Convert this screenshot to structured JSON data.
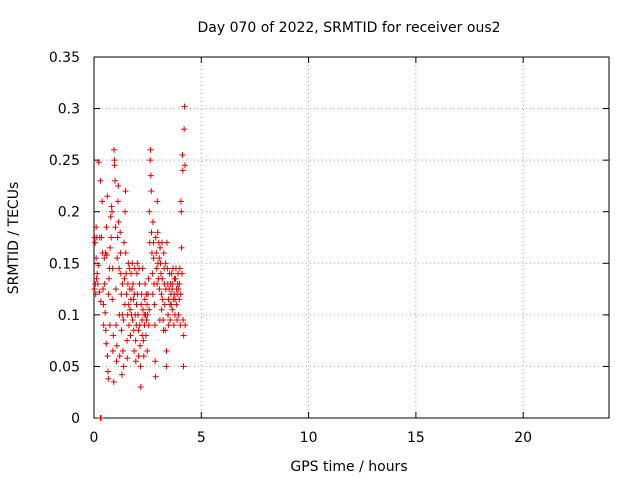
{
  "chart_data": {
    "type": "scatter",
    "title": "Day 070 of 2022, SRMTID for receiver ous2",
    "xlabel": "GPS time / hours",
    "ylabel": "SRMTID / TECUs",
    "xlim": [
      0,
      24
    ],
    "ylim": [
      0,
      0.35
    ],
    "x_ticks": [
      0,
      5,
      10,
      15,
      20
    ],
    "y_ticks": [
      0,
      0.05,
      0.1,
      0.15,
      0.2,
      0.25,
      0.3,
      0.35
    ],
    "x_tick_labels": [
      "0",
      "5",
      "10",
      "15",
      "20"
    ],
    "y_tick_labels": [
      "0",
      "0.05",
      "0.1",
      "0.15",
      "0.2",
      "0.25",
      "0.3",
      "0.35"
    ],
    "grid": true,
    "marker": "+",
    "series": [
      {
        "name": "ous2",
        "color": "#e00000",
        "points": [
          [
            0.02,
            0.125
          ],
          [
            0.03,
            0.175
          ],
          [
            0.05,
            0.17
          ],
          [
            0.06,
            0.13
          ],
          [
            0.08,
            0.12
          ],
          [
            0.1,
            0.155
          ],
          [
            0.1,
            0.185
          ],
          [
            0.12,
            0.135
          ],
          [
            0.13,
            0.175
          ],
          [
            0.15,
            0.14
          ],
          [
            0.18,
            0.13
          ],
          [
            0.2,
            0.148
          ],
          [
            0.22,
            0.248
          ],
          [
            0.25,
            0.122
          ],
          [
            0.27,
            0.175
          ],
          [
            0.3,
            0.0
          ],
          [
            0.3,
            0.23
          ],
          [
            0.32,
            0.113
          ],
          [
            0.33,
            0.0
          ],
          [
            0.35,
            0.175
          ],
          [
            0.38,
            0.21
          ],
          [
            0.4,
            0.16
          ],
          [
            0.42,
            0.125
          ],
          [
            0.44,
            0.11
          ],
          [
            0.45,
            0.09
          ],
          [
            0.48,
            0.155
          ],
          [
            0.5,
            0.13
          ],
          [
            0.52,
            0.102
          ],
          [
            0.54,
            0.16
          ],
          [
            0.55,
            0.085
          ],
          [
            0.57,
            0.072
          ],
          [
            0.58,
            0.185
          ],
          [
            0.6,
            0.158
          ],
          [
            0.62,
            0.215
          ],
          [
            0.63,
            0.06
          ],
          [
            0.65,
            0.045
          ],
          [
            0.67,
            0.038
          ],
          [
            0.68,
            0.12
          ],
          [
            0.7,
            0.135
          ],
          [
            0.72,
            0.145
          ],
          [
            0.74,
            0.09
          ],
          [
            0.75,
            0.165
          ],
          [
            0.78,
            0.195
          ],
          [
            0.8,
            0.175
          ],
          [
            0.82,
            0.205
          ],
          [
            0.84,
            0.2
          ],
          [
            0.85,
            0.115
          ],
          [
            0.87,
            0.145
          ],
          [
            0.88,
            0.065
          ],
          [
            0.9,
            0.08
          ],
          [
            0.92,
            0.035
          ],
          [
            0.93,
            0.26
          ],
          [
            0.95,
            0.25
          ],
          [
            0.96,
            0.245
          ],
          [
            0.98,
            0.23
          ],
          [
            1.0,
            0.185
          ],
          [
            1.02,
            0.125
          ],
          [
            1.03,
            0.09
          ],
          [
            1.05,
            0.055
          ],
          [
            1.07,
            0.07
          ],
          [
            1.08,
            0.155
          ],
          [
            1.1,
            0.175
          ],
          [
            1.12,
            0.21
          ],
          [
            1.13,
            0.225
          ],
          [
            1.15,
            0.19
          ],
          [
            1.17,
            0.145
          ],
          [
            1.18,
            0.1
          ],
          [
            1.2,
            0.06
          ],
          [
            1.22,
            0.18
          ],
          [
            1.23,
            0.16
          ],
          [
            1.25,
            0.14
          ],
          [
            1.27,
            0.12
          ],
          [
            1.28,
            0.085
          ],
          [
            1.3,
            0.042
          ],
          [
            1.32,
            0.1
          ],
          [
            1.33,
            0.13
          ],
          [
            1.35,
            0.065
          ],
          [
            1.37,
            0.095
          ],
          [
            1.38,
            0.05
          ],
          [
            1.4,
            0.17
          ],
          [
            1.42,
            0.135
          ],
          [
            1.44,
            0.11
          ],
          [
            1.45,
            0.2
          ],
          [
            1.47,
            0.22
          ],
          [
            1.48,
            0.16
          ],
          [
            1.5,
            0.14
          ],
          [
            1.52,
            0.12
          ],
          [
            1.54,
            0.075
          ],
          [
            1.55,
            0.058
          ],
          [
            1.57,
            0.1
          ],
          [
            1.58,
            0.13
          ],
          [
            1.6,
            0.15
          ],
          [
            1.62,
            0.11
          ],
          [
            1.63,
            0.09
          ],
          [
            1.65,
            0.145
          ],
          [
            1.67,
            0.125
          ],
          [
            1.68,
            0.105
          ],
          [
            1.7,
            0.08
          ],
          [
            1.72,
            0.115
          ],
          [
            1.73,
            0.14
          ],
          [
            1.75,
            0.1
          ],
          [
            1.77,
            0.125
          ],
          [
            1.78,
            0.15
          ],
          [
            1.8,
            0.095
          ],
          [
            1.82,
            0.13
          ],
          [
            1.84,
            0.115
          ],
          [
            1.85,
            0.085
          ],
          [
            1.87,
            0.065
          ],
          [
            1.88,
            0.12
          ],
          [
            1.9,
            0.145
          ],
          [
            1.92,
            0.1
          ],
          [
            1.94,
            0.075
          ],
          [
            1.95,
            0.055
          ],
          [
            1.97,
            0.09
          ],
          [
            1.98,
            0.11
          ],
          [
            2.0,
            0.14
          ],
          [
            2.02,
            0.15
          ],
          [
            2.03,
            0.12
          ],
          [
            2.05,
            0.1
          ],
          [
            2.07,
            0.085
          ],
          [
            2.08,
            0.06
          ],
          [
            2.1,
            0.145
          ],
          [
            2.12,
            0.13
          ],
          [
            2.13,
            0.09
          ],
          [
            2.15,
            0.07
          ],
          [
            2.17,
            0.05
          ],
          [
            2.18,
            0.03
          ],
          [
            2.2,
            0.11
          ],
          [
            2.22,
            0.12
          ],
          [
            2.24,
            0.095
          ],
          [
            2.25,
            0.08
          ],
          [
            2.27,
            0.145
          ],
          [
            2.28,
            0.105
          ],
          [
            2.3,
            0.075
          ],
          [
            2.32,
            0.06
          ],
          [
            2.34,
            0.1
          ],
          [
            2.35,
            0.09
          ],
          [
            2.37,
            0.115
          ],
          [
            2.38,
            0.13
          ],
          [
            2.4,
            0.1
          ],
          [
            2.42,
            0.08
          ],
          [
            2.44,
            0.12
          ],
          [
            2.45,
            0.095
          ],
          [
            2.47,
            0.11
          ],
          [
            2.48,
            0.065
          ],
          [
            2.5,
            0.1
          ],
          [
            2.52,
            0.12
          ],
          [
            2.54,
            0.135
          ],
          [
            2.55,
            0.09
          ],
          [
            2.57,
            0.105
          ],
          [
            2.58,
            0.2
          ],
          [
            2.6,
            0.17
          ],
          [
            2.62,
            0.25
          ],
          [
            2.63,
            0.26
          ],
          [
            2.65,
            0.235
          ],
          [
            2.67,
            0.22
          ],
          [
            2.68,
            0.18
          ],
          [
            2.7,
            0.16
          ],
          [
            2.72,
            0.14
          ],
          [
            2.74,
            0.12
          ],
          [
            2.75,
            0.19
          ],
          [
            2.77,
            0.17
          ],
          [
            2.78,
            0.155
          ],
          [
            2.8,
            0.13
          ],
          [
            2.82,
            0.11
          ],
          [
            2.84,
            0.09
          ],
          [
            2.85,
            0.055
          ],
          [
            2.87,
            0.04
          ],
          [
            2.88,
            0.175
          ],
          [
            2.9,
            0.16
          ],
          [
            2.92,
            0.145
          ],
          [
            2.94,
            0.13
          ],
          [
            2.95,
            0.21
          ],
          [
            2.97,
            0.18
          ],
          [
            2.98,
            0.15
          ],
          [
            3.0,
            0.135
          ],
          [
            3.02,
            0.17
          ],
          [
            3.04,
            0.155
          ],
          [
            3.05,
            0.125
          ],
          [
            3.07,
            0.095
          ],
          [
            3.08,
            0.165
          ],
          [
            3.1,
            0.15
          ],
          [
            3.12,
            0.14
          ],
          [
            3.14,
            0.12
          ],
          [
            3.15,
            0.105
          ],
          [
            3.17,
            0.17
          ],
          [
            3.18,
            0.135
          ],
          [
            3.2,
            0.115
          ],
          [
            3.22,
            0.095
          ],
          [
            3.24,
            0.085
          ],
          [
            3.25,
            0.16
          ],
          [
            3.27,
            0.145
          ],
          [
            3.28,
            0.13
          ],
          [
            3.3,
            0.11
          ],
          [
            3.32,
            0.085
          ],
          [
            3.34,
            0.15
          ],
          [
            3.35,
            0.125
          ],
          [
            3.37,
            0.05
          ],
          [
            3.38,
            0.065
          ],
          [
            3.4,
            0.17
          ],
          [
            3.42,
            0.145
          ],
          [
            3.44,
            0.13
          ],
          [
            3.45,
            0.1
          ],
          [
            3.47,
            0.115
          ],
          [
            3.48,
            0.09
          ],
          [
            3.5,
            0.125
          ],
          [
            3.52,
            0.14
          ],
          [
            3.54,
            0.11
          ],
          [
            3.55,
            0.095
          ],
          [
            3.57,
            0.13
          ],
          [
            3.58,
            0.12
          ],
          [
            3.6,
            0.11
          ],
          [
            3.62,
            0.14
          ],
          [
            3.64,
            0.125
          ],
          [
            3.65,
            0.105
          ],
          [
            3.67,
            0.13
          ],
          [
            3.68,
            0.145
          ],
          [
            3.7,
            0.115
          ],
          [
            3.72,
            0.09
          ],
          [
            3.74,
            0.12
          ],
          [
            3.75,
            0.135
          ],
          [
            3.77,
            0.1
          ],
          [
            3.78,
            0.115
          ],
          [
            3.8,
            0.135
          ],
          [
            3.82,
            0.145
          ],
          [
            3.84,
            0.11
          ],
          [
            3.85,
            0.125
          ],
          [
            3.87,
            0.095
          ],
          [
            3.88,
            0.12
          ],
          [
            3.9,
            0.13
          ],
          [
            3.92,
            0.14
          ],
          [
            3.94,
            0.1
          ],
          [
            3.95,
            0.125
          ],
          [
            3.97,
            0.115
          ],
          [
            3.98,
            0.13
          ],
          [
            4.0,
            0.145
          ],
          [
            4.02,
            0.09
          ],
          [
            4.04,
            0.12
          ],
          [
            4.05,
            0.21
          ],
          [
            4.07,
            0.2
          ],
          [
            4.08,
            0.165
          ],
          [
            4.1,
            0.14
          ],
          [
            4.12,
            0.255
          ],
          [
            4.14,
            0.24
          ],
          [
            4.15,
            0.095
          ],
          [
            4.17,
            0.05
          ],
          [
            4.18,
            0.08
          ],
          [
            4.2,
            0.28
          ],
          [
            4.22,
            0.302
          ],
          [
            4.24,
            0.245
          ],
          [
            4.25,
            0.09
          ]
        ]
      }
    ]
  }
}
